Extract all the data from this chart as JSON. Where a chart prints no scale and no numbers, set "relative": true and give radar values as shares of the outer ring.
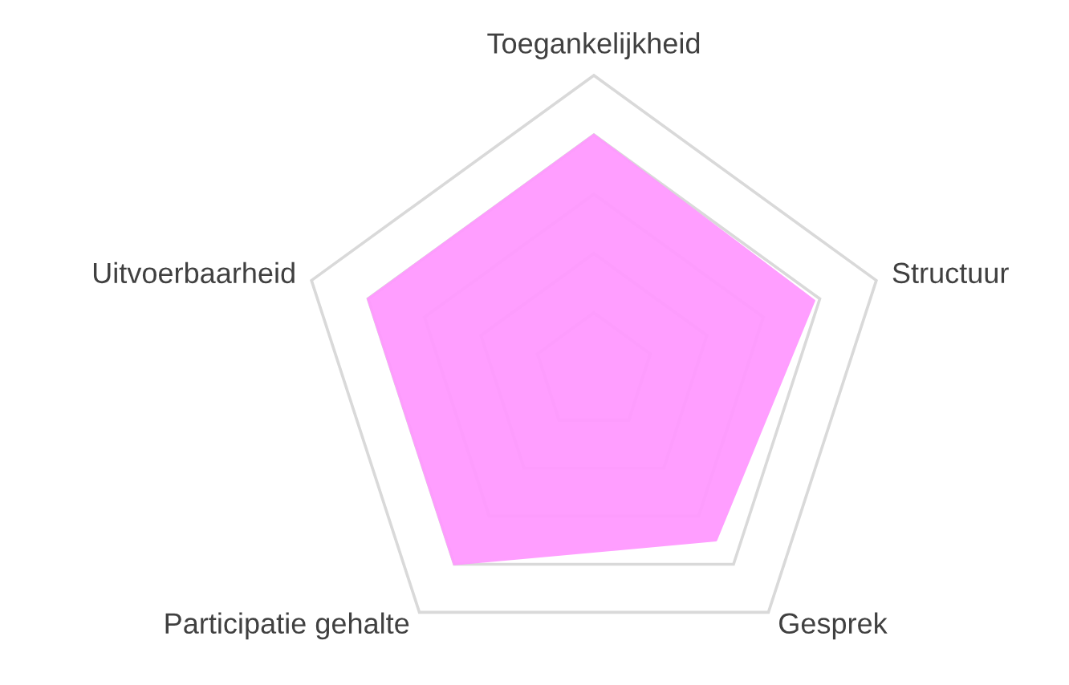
{
  "chart_data": {
    "type": "radar",
    "relative": true,
    "grid": true,
    "categories": [
      "Toegankelijkheid",
      "Structuur",
      "Gesprek",
      "Participatie gehalte",
      "Uitvoerbaarheid"
    ],
    "series": [
      {
        "color": "#ff99ff",
        "values": [
          0.8,
          0.78,
          0.7,
          0.8,
          0.8
        ]
      }
    ]
  }
}
